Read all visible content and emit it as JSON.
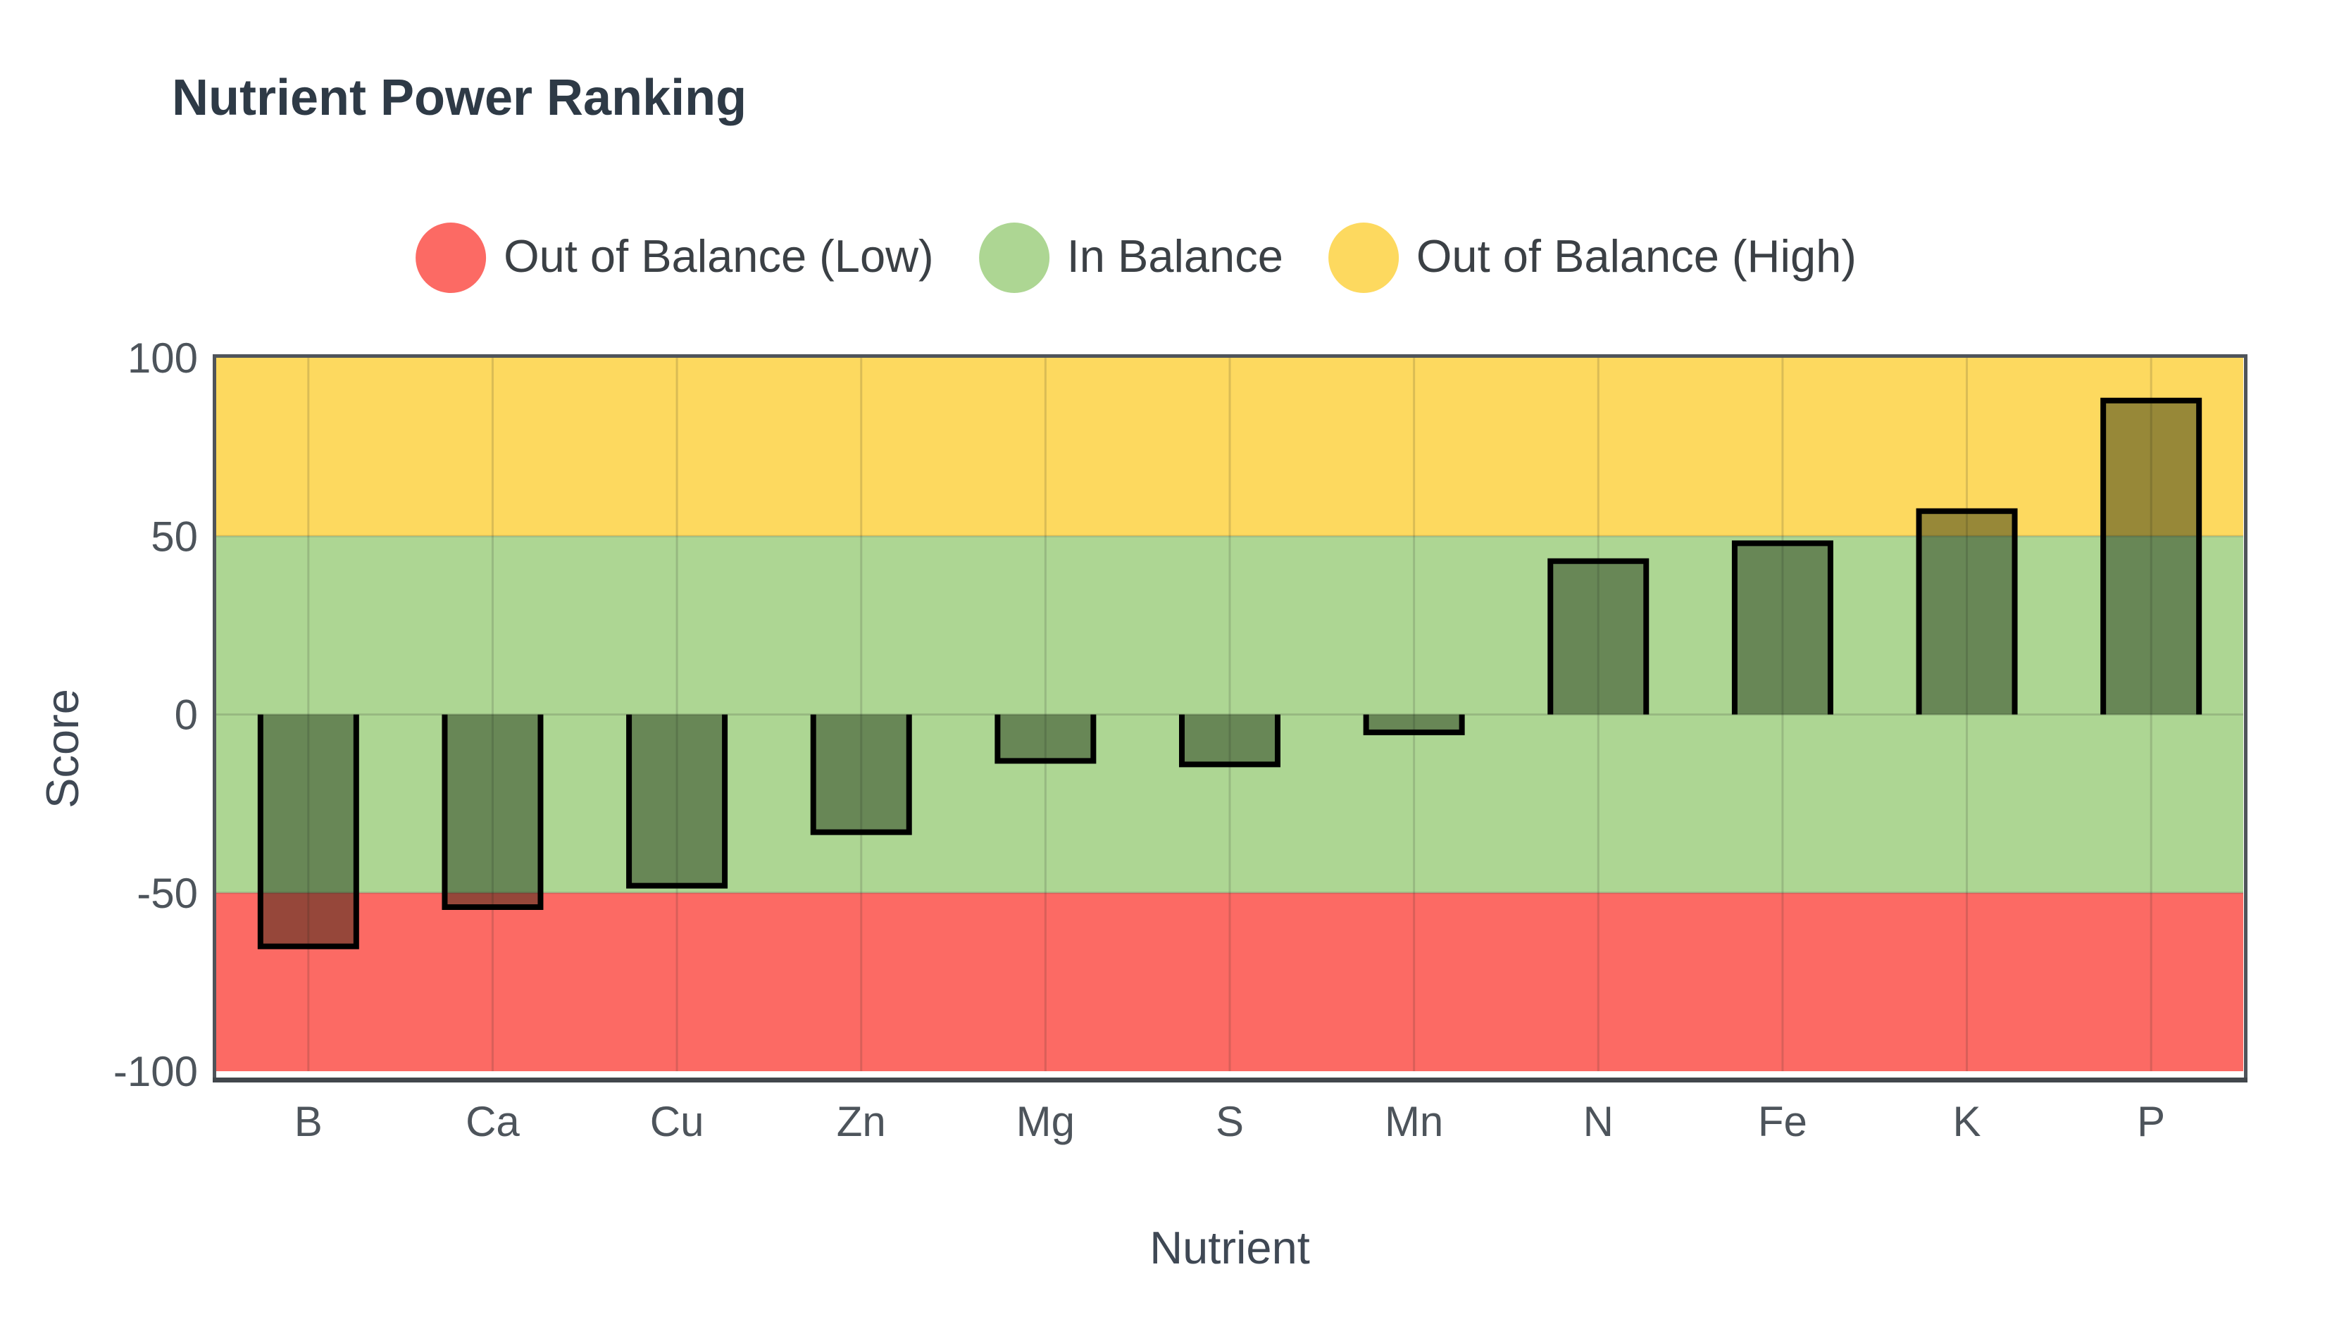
{
  "chart_data": {
    "type": "bar",
    "title": "Nutrient Power Ranking",
    "xlabel": "Nutrient",
    "ylabel": "Score",
    "categories": [
      "B",
      "Ca",
      "Cu",
      "Zn",
      "Mg",
      "S",
      "Mn",
      "N",
      "Fe",
      "K",
      "P"
    ],
    "values": [
      -65,
      -54,
      -48,
      -33,
      -13,
      -14,
      -5,
      43,
      48,
      57,
      88
    ],
    "ylim": [
      -100,
      100
    ],
    "yticks": [
      100,
      50,
      0,
      -50,
      -100
    ],
    "grid": true,
    "legend_position": "top-center",
    "legend": [
      {
        "label": "Out of Balance (Low)",
        "color": "#fc6a64"
      },
      {
        "label": "In Balance",
        "color": "#add693"
      },
      {
        "label": "Out of Balance (High)",
        "color": "#fdd95f"
      }
    ],
    "zones": [
      {
        "name": "Out of Balance (High)",
        "from": 50,
        "to": 100,
        "color": "#fdd95f"
      },
      {
        "name": "In Balance",
        "from": -50,
        "to": 50,
        "color": "#add693"
      },
      {
        "name": "Out of Balance (Low)",
        "from": -100,
        "to": -50,
        "color": "#fc6a64"
      }
    ],
    "bar_style": {
      "fill": "rgba(6,22,0,0.41)",
      "border_color": "#000000",
      "border_width": 8
    }
  },
  "colors": {
    "background": "#ffffff",
    "title_text": "#2e3a46",
    "legend_text": "#3b4045",
    "tick_text": "#4d545b",
    "axis_title_text": "#3f4854",
    "plot_border": "#4f545a",
    "axis_line": "#42474c",
    "gridline": "rgba(40,40,40,0.16)"
  }
}
